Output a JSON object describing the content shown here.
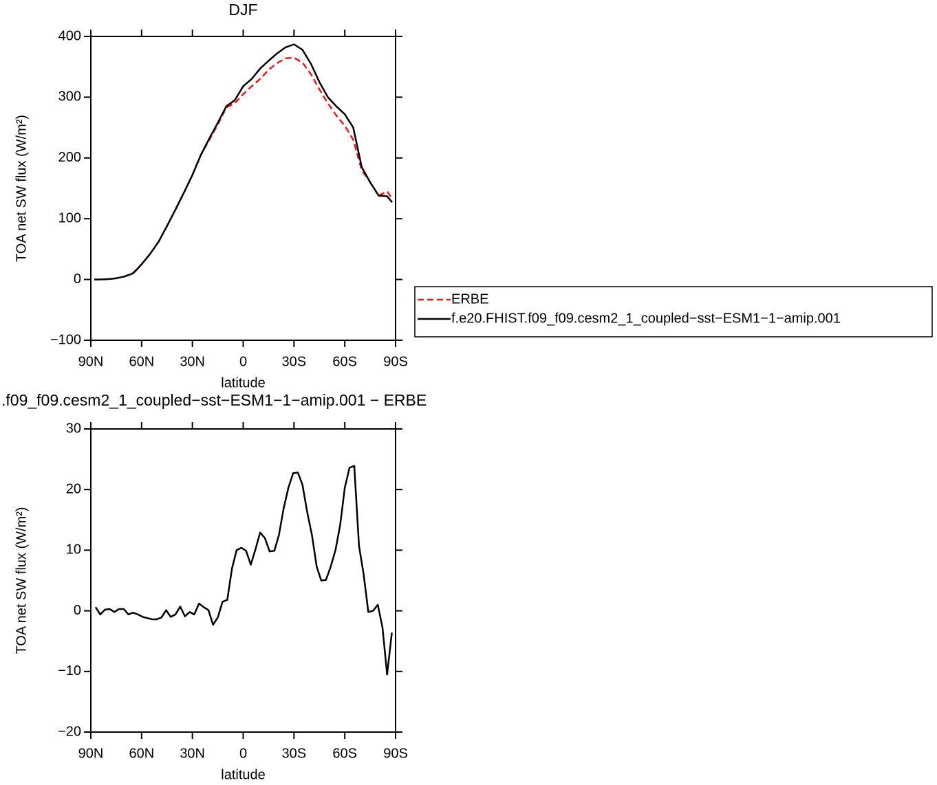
{
  "chart_data": [
    {
      "type": "line",
      "title": "DJF",
      "xlabel": "latitude",
      "ylabel": "TOA net SW flux (W/m²)",
      "x": [
        88,
        85,
        80,
        75,
        70,
        65,
        60,
        55,
        50,
        45,
        40,
        35,
        30,
        25,
        20,
        15,
        10,
        5,
        0,
        -5,
        -10,
        -15,
        -20,
        -25,
        -30,
        -35,
        -40,
        -45,
        -50,
        -55,
        -60,
        -65,
        -70,
        -75,
        -80,
        -85,
        -88
      ],
      "series": [
        {
          "name": "ERBE",
          "color": "#e41a1c",
          "linestyle": "dashed",
          "values": [
            0,
            0,
            0.5,
            2,
            5,
            11,
            25,
            42,
            62,
            88,
            115,
            143,
            172,
            205,
            230,
            255,
            283,
            290,
            305,
            318,
            330,
            345,
            356,
            364,
            365,
            357,
            338,
            313,
            290,
            270,
            253,
            230,
            180,
            160,
            138,
            145,
            133
          ]
        },
        {
          "name": "f.e20.FHIST.f09_f09.cesm2_1_coupled−sst−ESM1−1−amip.001",
          "color": "#000000",
          "linestyle": "solid",
          "values": [
            0,
            0,
            0.5,
            2,
            5,
            10,
            25,
            42,
            62,
            88,
            115,
            143,
            172,
            205,
            232,
            258,
            285,
            295,
            318,
            330,
            347,
            360,
            372,
            382,
            387,
            378,
            355,
            325,
            300,
            285,
            272,
            250,
            185,
            160,
            138,
            137,
            127
          ]
        }
      ],
      "xlim": [
        90,
        -90
      ],
      "xticks": [
        {
          "value": 90,
          "label": "90N"
        },
        {
          "value": 60,
          "label": "60N"
        },
        {
          "value": 30,
          "label": "30N"
        },
        0,
        {
          "value": -30,
          "label": "30S"
        },
        {
          "value": -60,
          "label": "60S"
        },
        {
          "value": -90,
          "label": "90S"
        }
      ],
      "ylim": [
        -100,
        400
      ],
      "yticks": [
        {
          "value": -100,
          "label": "−100"
        },
        0,
        100,
        200,
        300,
        400
      ],
      "legend": "right"
    },
    {
      "type": "line",
      "title": ".f09_f09.cesm2_1_coupled−sst−ESM1−1−amip.001 − ERBE",
      "xlabel": "latitude",
      "ylabel": "TOA net SW flux (W/m²)",
      "x": [
        87.2,
        84.4,
        81.6,
        78.9,
        76.1,
        73.3,
        70.5,
        67.8,
        65.0,
        62.2,
        59.4,
        56.6,
        53.9,
        51.1,
        48.3,
        45.5,
        42.8,
        40.0,
        37.2,
        34.4,
        31.6,
        28.9,
        26.1,
        23.3,
        20.5,
        17.8,
        15.0,
        12.2,
        9.4,
        6.6,
        3.9,
        1.1,
        -1.7,
        -4.5,
        -7.3,
        -10.0,
        -12.8,
        -15.6,
        -18.4,
        -21.1,
        -23.9,
        -26.7,
        -29.5,
        -32.3,
        -35.0,
        -37.8,
        -40.6,
        -43.4,
        -46.1,
        -48.9,
        -51.7,
        -54.5,
        -57.3,
        -60.0,
        -62.8,
        -65.6,
        -68.4,
        -71.1,
        -73.9,
        -76.7,
        -79.5,
        -82.3,
        -85.0,
        -87.8
      ],
      "series": [
        {
          "color": "#000000",
          "linestyle": "solid",
          "values": [
            0.6,
            -0.6,
            0.2,
            0.3,
            -0.2,
            0.3,
            0.3,
            -0.6,
            -0.3,
            -0.6,
            -1.0,
            -1.2,
            -1.4,
            -1.4,
            -1.1,
            0.1,
            -1.0,
            -0.6,
            0.7,
            -0.9,
            -0.2,
            -0.6,
            1.2,
            0.6,
            0.1,
            -2.3,
            -1.1,
            1.5,
            1.8,
            7.0,
            10.0,
            10.4,
            9.9,
            7.6,
            10.2,
            12.9,
            12.0,
            9.8,
            9.9,
            12.5,
            16.9,
            20.3,
            22.7,
            22.8,
            20.8,
            16.3,
            12.5,
            7.3,
            5.0,
            5.1,
            7.3,
            10.0,
            14.2,
            20.3,
            23.6,
            23.9,
            10.7,
            6.1,
            -0.2,
            0.0,
            1.0,
            -2.8,
            -10.5,
            -3.6
          ]
        }
      ],
      "xlim": [
        90,
        -90
      ],
      "xticks": [
        {
          "value": 90,
          "label": "90N"
        },
        {
          "value": 60,
          "label": "60N"
        },
        {
          "value": 30,
          "label": "30N"
        },
        0,
        {
          "value": -30,
          "label": "30S"
        },
        {
          "value": -60,
          "label": "60S"
        },
        {
          "value": -90,
          "label": "90S"
        }
      ],
      "ylim": [
        -20,
        30
      ],
      "yticks": [
        {
          "value": -20,
          "label": "−20"
        },
        {
          "value": -10,
          "label": "−10"
        },
        0,
        10,
        20,
        30
      ]
    }
  ]
}
